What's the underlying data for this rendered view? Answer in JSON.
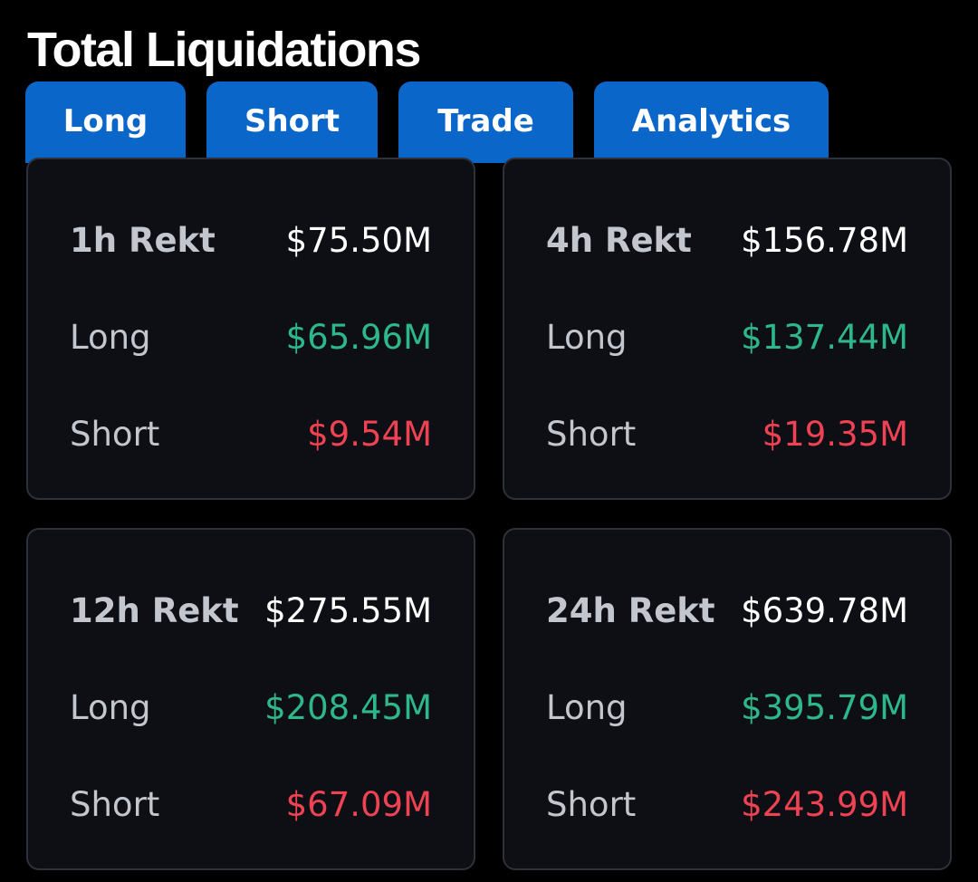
{
  "page": {
    "title": "Total Liquidations"
  },
  "tabs": [
    {
      "label": "Long"
    },
    {
      "label": "Short"
    },
    {
      "label": "Trade"
    },
    {
      "label": "Analytics"
    }
  ],
  "cards": [
    {
      "period": "1h Rekt",
      "total": "$75.50M",
      "long_label": "Long",
      "long": "$65.96M",
      "short_label": "Short",
      "short": "$9.54M"
    },
    {
      "period": "4h Rekt",
      "total": "$156.78M",
      "long_label": "Long",
      "long": "$137.44M",
      "short_label": "Short",
      "short": "$19.35M"
    },
    {
      "period": "12h Rekt",
      "total": "$275.55M",
      "long_label": "Long",
      "long": "$208.45M",
      "short_label": "Short",
      "short": "$67.09M"
    },
    {
      "period": "24h Rekt",
      "total": "$639.78M",
      "long_label": "Long",
      "long": "$395.79M",
      "short_label": "Short",
      "short": "$243.99M"
    }
  ],
  "colors": {
    "tab_background": "#0a66c9",
    "long_value": "#2eb88a",
    "short_value": "#ef4252",
    "card_background": "#0d0f15"
  }
}
